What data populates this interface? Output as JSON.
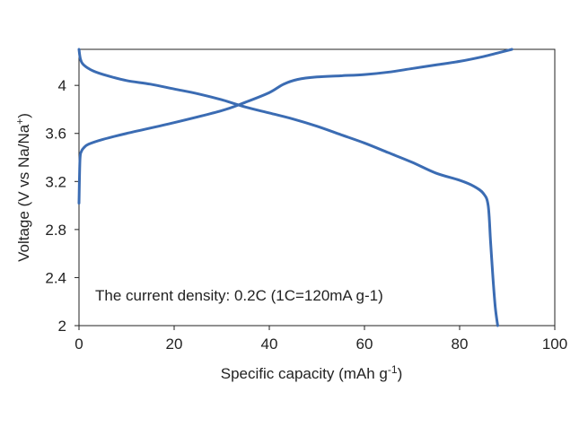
{
  "chart_data": {
    "type": "line",
    "xlabel": {
      "text": "Specific capacity   (mAh g",
      "sup": "-1",
      "tail": ")"
    },
    "ylabel": {
      "text": "Voltage  (V vs Na/Na",
      "sup": "+",
      "tail": ")"
    },
    "xlim": [
      0,
      100
    ],
    "ylim": [
      2,
      4.3
    ],
    "x_ticks": [
      "0",
      "20",
      "40",
      "60",
      "80",
      "100"
    ],
    "y_ticks": [
      "2",
      "2.4",
      "2.8",
      "3.2",
      "3.6",
      "4"
    ],
    "annotation": "The current density: 0.2C (1C=120mA g-1)",
    "grid": false,
    "line_color": "#3b6cb3",
    "series": [
      {
        "x": [
          0,
          0.2,
          0.5,
          1,
          2,
          5,
          10,
          20,
          30,
          35,
          40,
          43,
          46,
          50,
          55,
          60,
          65,
          70,
          75,
          80,
          85,
          88,
          91
        ],
        "y": [
          3.02,
          3.38,
          3.45,
          3.48,
          3.51,
          3.55,
          3.6,
          3.69,
          3.79,
          3.86,
          3.94,
          4.01,
          4.05,
          4.07,
          4.08,
          4.09,
          4.11,
          4.14,
          4.17,
          4.2,
          4.24,
          4.27,
          4.3
        ]
      },
      {
        "x": [
          0,
          0.3,
          1,
          3,
          6,
          10,
          15,
          20,
          25,
          30,
          35,
          40,
          45,
          50,
          55,
          60,
          65,
          70,
          75,
          80,
          83,
          85,
          86,
          86.5,
          87,
          87.5,
          88
        ],
        "y": [
          4.3,
          4.22,
          4.17,
          4.12,
          4.08,
          4.04,
          4.01,
          3.97,
          3.93,
          3.88,
          3.82,
          3.77,
          3.72,
          3.66,
          3.59,
          3.52,
          3.44,
          3.36,
          3.27,
          3.21,
          3.16,
          3.1,
          3.0,
          2.7,
          2.4,
          2.15,
          2.0
        ]
      }
    ]
  }
}
